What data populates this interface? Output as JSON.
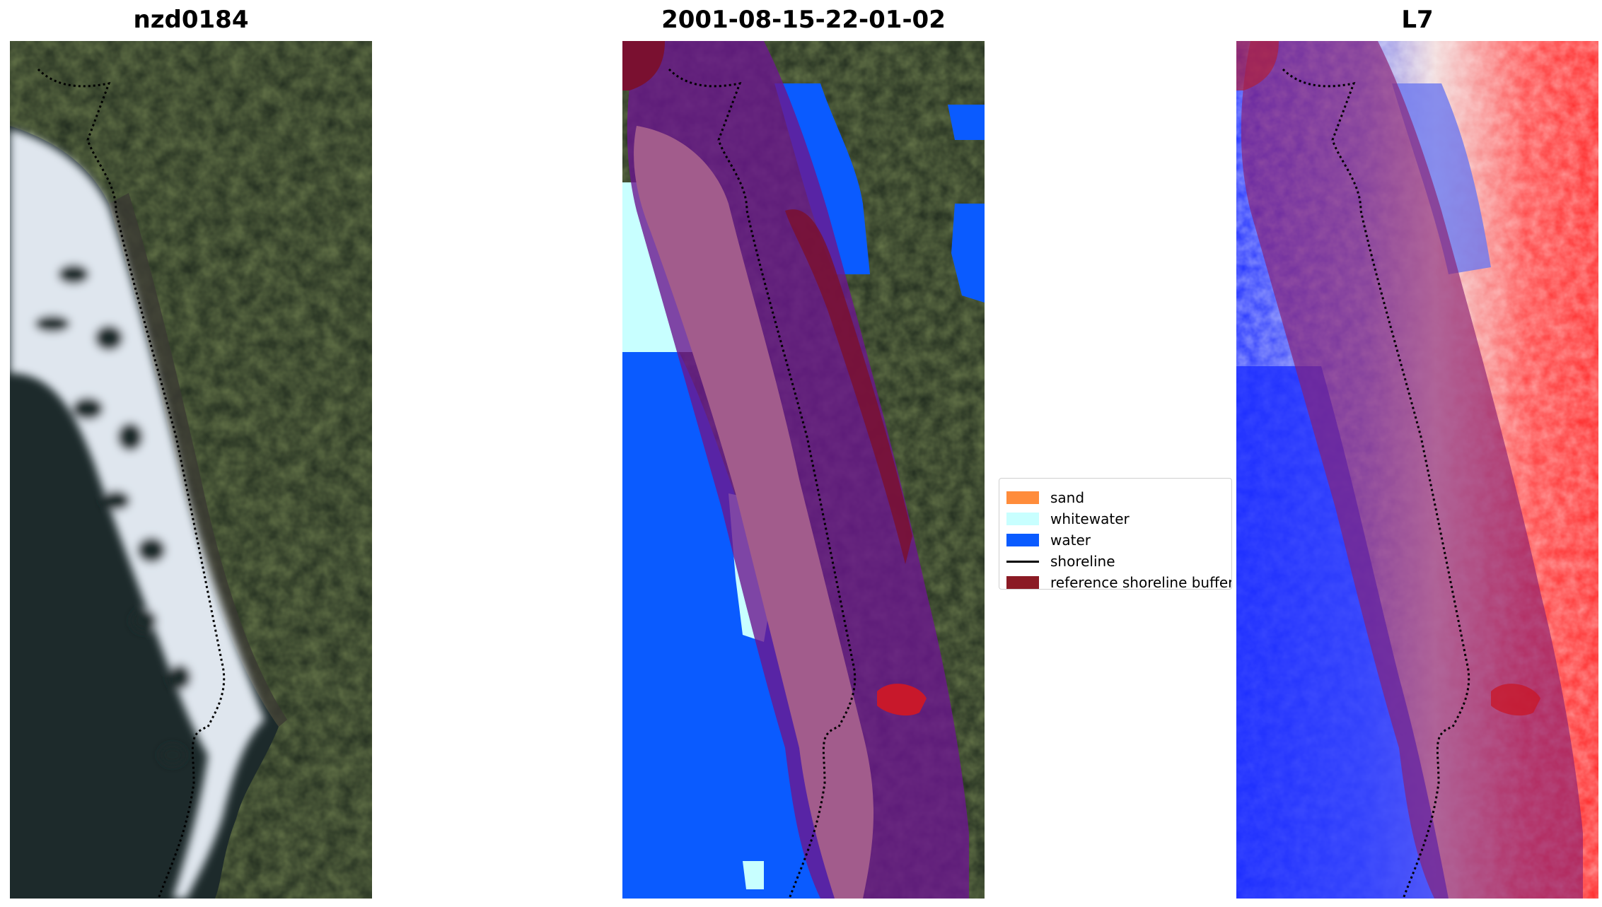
{
  "panels": [
    {
      "title": "nzd0184"
    },
    {
      "title": "2001-08-15-22-01-02"
    },
    {
      "title": "L7"
    }
  ],
  "legend": {
    "items": [
      {
        "label": "sand",
        "color": "#ff8c3b"
      },
      {
        "label": "whitewater",
        "color": "#c8ffff"
      },
      {
        "label": "water",
        "color": "#0a5bff"
      },
      {
        "label": "shoreline",
        "color": "#000000"
      },
      {
        "label": "reference shoreline buffer",
        "color": "#8b1a24"
      }
    ]
  },
  "colors": {
    "land": "#1f2a1e",
    "ocean": "#1e2d2c",
    "surf": "#e8eef4",
    "buffer": "#7a1030",
    "classified_sand_overlay": "#a25c8c",
    "water_index_high": "#ff2020",
    "water_index_low": "#1a2bff"
  }
}
